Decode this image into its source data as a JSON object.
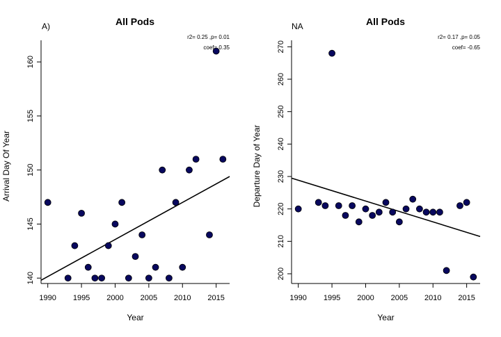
{
  "chart_data": [
    {
      "type": "scatter",
      "panel_label": "A)",
      "title": "All Pods",
      "xlabel": "Year",
      "ylabel": "Arrival Day Of Year",
      "xlim": [
        1989,
        2017
      ],
      "ylim": [
        139.5,
        162
      ],
      "xticks": [
        1990,
        1995,
        2000,
        2005,
        2010,
        2015
      ],
      "yticks": [
        140,
        145,
        150,
        155,
        160
      ],
      "annotations": [
        "r2= 0.25 ,p= 0.01",
        "coef= 0.35"
      ],
      "x": [
        1990,
        1993,
        1994,
        1995,
        1996,
        1997,
        1998,
        1999,
        2000,
        2001,
        2002,
        2003,
        2004,
        2005,
        2006,
        2007,
        2008,
        2009,
        2010,
        2011,
        2012,
        2014,
        2015,
        2016
      ],
      "y": [
        147,
        140,
        143,
        146,
        141,
        140,
        140,
        143,
        145,
        147,
        140,
        142,
        144,
        140,
        141,
        150,
        140,
        147,
        141,
        150,
        151,
        144,
        161,
        151
      ],
      "fit_line": {
        "x": [
          1989,
          2017
        ],
        "y": [
          139.8,
          149.4
        ]
      },
      "point_color": "#08085e",
      "grid": false
    },
    {
      "type": "scatter",
      "panel_label": "NA",
      "title": "All Pods",
      "xlabel": "Year",
      "ylabel": "Departure Day of Year",
      "xlim": [
        1989,
        2017
      ],
      "ylim": [
        197,
        272
      ],
      "xticks": [
        1990,
        1995,
        2000,
        2005,
        2010,
        2015
      ],
      "yticks": [
        200,
        210,
        220,
        230,
        240,
        250,
        260,
        270
      ],
      "annotations": [
        "r2= 0.17 ,p= 0.05",
        "coef= -0.65"
      ],
      "x": [
        1990,
        1993,
        1994,
        1995,
        1996,
        1997,
        1998,
        1999,
        2000,
        2001,
        2002,
        2003,
        2004,
        2005,
        2006,
        2007,
        2008,
        2009,
        2010,
        2011,
        2012,
        2014,
        2015,
        2016
      ],
      "y": [
        220,
        222,
        221,
        268,
        221,
        218,
        221,
        216,
        220,
        218,
        219,
        222,
        219,
        216,
        220,
        223,
        220,
        219,
        219,
        219,
        201,
        221,
        222,
        199
      ],
      "fit_line": {
        "x": [
          1989,
          2017
        ],
        "y": [
          229.5,
          211.5
        ]
      },
      "point_color": "#08085e",
      "grid": false
    }
  ]
}
